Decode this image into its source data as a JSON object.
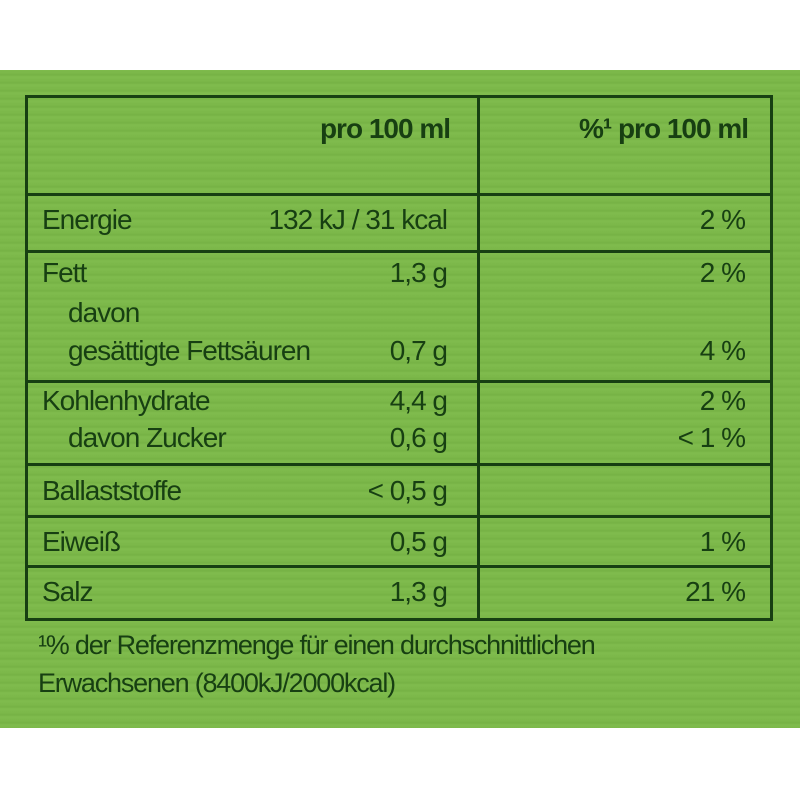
{
  "colors": {
    "background": "#7cb84a",
    "text": "#173f12"
  },
  "header": {
    "col1": "pro 100 ml",
    "col2": "%¹ pro 100 ml"
  },
  "rows": [
    {
      "label": "Energie",
      "value": "132 kJ / 31 kcal",
      "percent": "2 %"
    },
    {
      "label": "Fett",
      "value": "1,3 g",
      "percent": "2 %"
    },
    {
      "label": "davon",
      "value": "",
      "percent": ""
    },
    {
      "label": "gesättigte Fettsäuren",
      "value": "0,7 g",
      "percent": "4 %"
    },
    {
      "label": "Kohlenhydrate",
      "value": "4,4 g",
      "percent": "2 %"
    },
    {
      "label": "davon Zucker",
      "value": "0,6 g",
      "percent": "< 1 %"
    },
    {
      "label": "Ballaststoffe",
      "value": "< 0,5 g",
      "percent": ""
    },
    {
      "label": "Eiweiß",
      "value": "0,5 g",
      "percent": "1 %"
    },
    {
      "label": "Salz",
      "value": "1,3 g",
      "percent": "21 %"
    }
  ],
  "footnote": {
    "line1": "¹% der Referenzmenge für einen durchschnittlichen",
    "line2": "Erwachsenen (8400kJ/2000kcal)"
  }
}
